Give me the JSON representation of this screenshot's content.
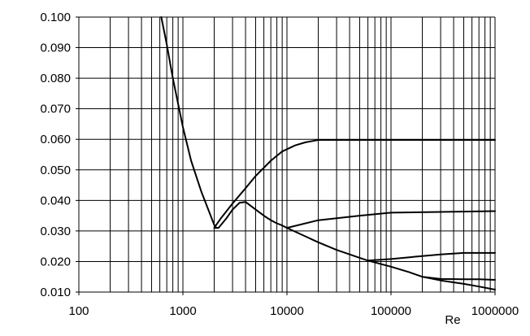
{
  "chart_data": {
    "type": "line",
    "title": "",
    "xlabel": "Re",
    "ylabel": "",
    "x_scale": "log",
    "xlim": [
      100,
      1000000
    ],
    "ylim": [
      0.01,
      0.1
    ],
    "grid": true,
    "x_tick_labels": [
      "100",
      "1000",
      "10000",
      "100000",
      "1000000"
    ],
    "y_tick_labels": [
      "0.010",
      "0.020",
      "0.030",
      "0.040",
      "0.050",
      "0.060",
      "0.070",
      "0.080",
      "0.090",
      "0.100"
    ],
    "series": [
      {
        "x": [
          620,
          700,
          800,
          1000,
          1200,
          1500,
          1800,
          2000,
          2100
        ],
        "y": [
          0.1,
          0.091,
          0.08,
          0.064,
          0.053,
          0.043,
          0.036,
          0.032,
          0.031
        ]
      },
      {
        "x": [
          2000,
          2300,
          3000,
          4000,
          5000,
          7000,
          9000,
          12000,
          15000,
          20000,
          30000,
          50000,
          100000,
          1000000
        ],
        "y": [
          0.031,
          0.034,
          0.039,
          0.044,
          0.048,
          0.053,
          0.056,
          0.058,
          0.059,
          0.0598,
          0.0598,
          0.0598,
          0.0598,
          0.0598
        ]
      },
      {
        "x": [
          2000,
          2200,
          2600,
          3000,
          3500,
          4000,
          5000,
          6000,
          7000,
          8000,
          9000,
          10000,
          20000,
          50000,
          100000,
          1000000
        ],
        "y": [
          0.031,
          0.031,
          0.034,
          0.037,
          0.0392,
          0.0395,
          0.037,
          0.035,
          0.0335,
          0.0325,
          0.0318,
          0.031,
          0.0335,
          0.035,
          0.036,
          0.0365
        ]
      },
      {
        "x": [
          10000,
          20000,
          30000,
          50000,
          60000,
          100000,
          200000,
          300000,
          500000,
          1000000
        ],
        "y": [
          0.031,
          0.0263,
          0.0238,
          0.0212,
          0.0203,
          0.0208,
          0.0218,
          0.0223,
          0.0228,
          0.0228
        ]
      },
      {
        "x": [
          60000,
          100000,
          150000,
          200000,
          300000,
          500000,
          700000,
          1000000
        ],
        "y": [
          0.0203,
          0.0183,
          0.0165,
          0.015,
          0.0143,
          0.0142,
          0.0142,
          0.014
        ]
      },
      {
        "x": [
          200000,
          300000,
          500000,
          700000,
          1000000
        ],
        "y": [
          0.015,
          0.0138,
          0.0127,
          0.0118,
          0.0108
        ]
      }
    ]
  }
}
